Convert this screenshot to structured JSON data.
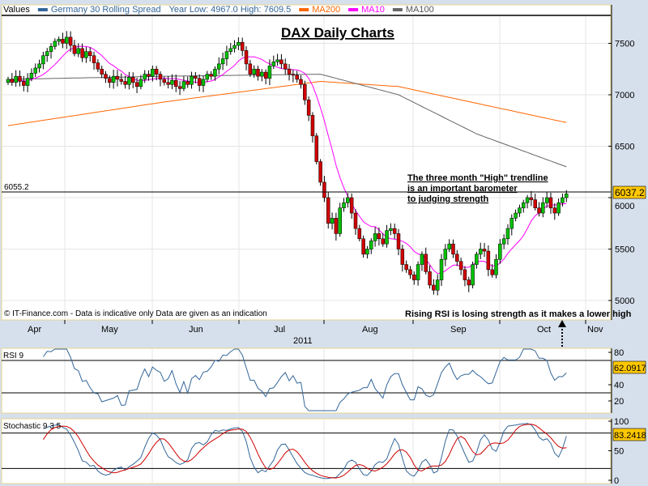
{
  "legend": {
    "values_label": "Values",
    "series_name": "Germany 30 Rolling Spread",
    "year_range": "Year Low: 4967.0 High: 7609.5",
    "ma200": "MA200",
    "ma10": "MA10",
    "ma100": "MA100"
  },
  "title": "DAX Daily Charts",
  "annotations": {
    "trendline_note": [
      "The three month \"High\" trendline",
      "is an important barometer",
      "to judging strength"
    ],
    "rsi_note": "Rising RSI is losing strength as it makes a lower high",
    "copyright": "© IT-Finance.com - Data is indicative only Data are given as an indication"
  },
  "trendline_label": "6055.2",
  "last_price_label": "6037.2",
  "rsi_label": "RSI 9",
  "rsi_value": "62.0917",
  "stoch_label": "Stochastic 9 3 5",
  "stoch_value": "83.2418",
  "colors": {
    "up": "#00c000",
    "down": "#d00000",
    "ma200": "#ff6600",
    "ma10": "#ff00ff",
    "ma100": "#666666",
    "series": "#336699",
    "badge": "#ffc800"
  },
  "chart_data": {
    "type": "candlestick",
    "title": "DAX Daily Charts",
    "xlabel": "2011",
    "x_ticks": [
      "Apr",
      "May",
      "Jun",
      "Jul",
      "Aug",
      "Sep",
      "Oct",
      "Nov"
    ],
    "y_ticks": [
      "7500",
      "7000",
      "6500",
      "6000",
      "5500",
      "5000"
    ],
    "ylim": [
      4980,
      7810
    ],
    "trendline": 6055.2,
    "closes": [
      7150,
      7120,
      7180,
      7130,
      7090,
      7160,
      7210,
      7260,
      7300,
      7380,
      7420,
      7470,
      7520,
      7540,
      7500,
      7560,
      7480,
      7400,
      7450,
      7360,
      7420,
      7380,
      7310,
      7250,
      7200,
      7160,
      7120,
      7180,
      7150,
      7130,
      7100,
      7170,
      7120,
      7080,
      7150,
      7200,
      7180,
      7250,
      7200,
      7150,
      7120,
      7100,
      7140,
      7080,
      7060,
      7130,
      7100,
      7180,
      7160,
      7090,
      7150,
      7200,
      7180,
      7250,
      7300,
      7350,
      7420,
      7450,
      7480,
      7510,
      7430,
      7300,
      7200,
      7250,
      7180,
      7220,
      7160,
      7280,
      7320,
      7340,
      7300,
      7250,
      7200,
      7190,
      7150,
      7100,
      6950,
      6800,
      6600,
      6350,
      6150,
      6000,
      5750,
      5800,
      5650,
      5900,
      5950,
      6000,
      5850,
      5700,
      5600,
      5450,
      5500,
      5580,
      5650,
      5600,
      5550,
      5680,
      5700,
      5650,
      5500,
      5350,
      5300,
      5250,
      5200,
      5350,
      5450,
      5280,
      5150,
      5100,
      5200,
      5400,
      5500,
      5550,
      5450,
      5380,
      5300,
      5200,
      5150,
      5350,
      5450,
      5500,
      5480,
      5300,
      5250,
      5400,
      5550,
      5600,
      5700,
      5800,
      5850,
      5900,
      5950,
      6000,
      5980,
      5900,
      5850,
      5950,
      6000,
      5900,
      5850,
      5950,
      6000,
      6037
    ],
    "ma200_points": [
      [
        0,
        6700
      ],
      [
        40,
        6930
      ],
      [
        80,
        7130
      ],
      [
        100,
        7080
      ],
      [
        143,
        6730
      ]
    ],
    "ma100_points": [
      [
        0,
        7150
      ],
      [
        40,
        7180
      ],
      [
        80,
        7200
      ],
      [
        100,
        7000
      ],
      [
        120,
        6620
      ],
      [
        143,
        6300
      ]
    ],
    "rsi": {
      "period": 9,
      "ylim": [
        8,
        84
      ],
      "ticks": [
        "80",
        "40",
        "20"
      ],
      "levels": [
        70,
        30
      ]
    },
    "stochastic": {
      "k": 9,
      "smooth": 3,
      "d": 5,
      "ylim": [
        0,
        100
      ],
      "ticks": [
        "100",
        "50",
        "0"
      ],
      "levels": [
        80,
        20
      ]
    }
  }
}
